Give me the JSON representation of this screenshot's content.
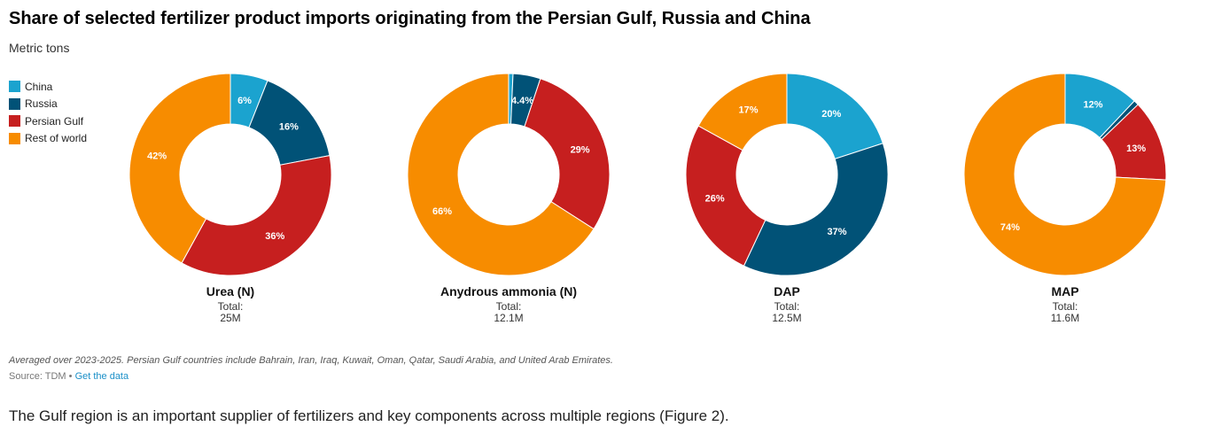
{
  "title": "Share of selected fertilizer product imports originating from the Persian Gulf, Russia and China",
  "subtitle": "Metric tons",
  "note": "Averaged over 2023-2025. Persian Gulf countries include Bahrain, Iran, Iraq, Kuwait, Oman, Qatar, Saudi Arabia, and United Arab Emirates.",
  "source": {
    "prefix": "Source: TDM • ",
    "link": "Get the data"
  },
  "paragraph": "The Gulf region is an important supplier of fertilizers and key components across multiple regions (Figure 2).",
  "chart_data": {
    "type": "pie",
    "donut": true,
    "legend_position": "left",
    "series_names": [
      "China",
      "Russia",
      "Persian Gulf",
      "Rest of world"
    ],
    "colors": [
      "#1ba3cf",
      "#015277",
      "#c61f1f",
      "#f78c00"
    ],
    "charts": [
      {
        "name": "Urea (N)",
        "total_label": "Total:",
        "total": "25M",
        "values": [
          6,
          16,
          36,
          42
        ],
        "labels": [
          "6%",
          "16%",
          "36%",
          "42%"
        ]
      },
      {
        "name": "Anydrous ammonia (N)",
        "total_label": "Total:",
        "total": "12.1M",
        "values": [
          0.7,
          4.4,
          29,
          66
        ],
        "labels": [
          "",
          "4.4%",
          "29%",
          "66%"
        ]
      },
      {
        "name": "DAP",
        "total_label": "Total:",
        "total": "12.5M",
        "values": [
          20,
          37,
          26,
          17
        ],
        "labels": [
          "20%",
          "37%",
          "26%",
          "17%"
        ]
      },
      {
        "name": "MAP",
        "total_label": "Total:",
        "total": "11.6M",
        "values": [
          12,
          0.8,
          13,
          74
        ],
        "labels": [
          "12%",
          "",
          "13%",
          "74%"
        ]
      }
    ]
  }
}
